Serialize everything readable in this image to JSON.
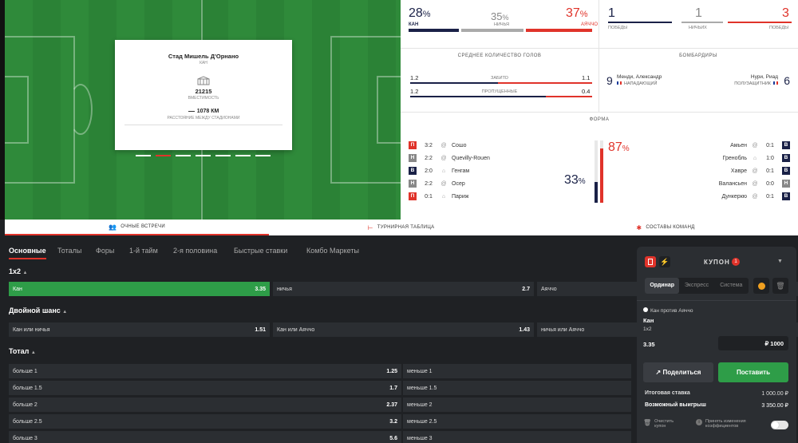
{
  "stadium": {
    "name": "Стад Мишель Д'Орнано",
    "city": "КАН",
    "capacity": "21215",
    "capacity_label": "ВМЕСТИМОСТЬ",
    "distance": "1078 КМ",
    "distance_label": "РАССТОЯНИЕ МЕЖДУ СТАДИОНАМИ",
    "active_slide": 2,
    "slides": 7
  },
  "probabilities": {
    "home_pct": "28",
    "home_name": "КАН",
    "draw_pct": "35",
    "draw_label": "НИЧЬЯ",
    "away_pct": "37",
    "away_name": "АЯЧЧО",
    "pct_sign": "%",
    "home_share": 0.28,
    "draw_share": 0.35,
    "away_share": 0.37
  },
  "h2h": {
    "wins": "1",
    "wins_label": "ПОБЕДЫ",
    "draws": "1",
    "draws_label": "НИЧЬИХ",
    "losses": "3",
    "losses_label": "ПОБЕДЫ"
  },
  "goals": {
    "title": "СРЕДНЕЕ КОЛИЧЕСТВО ГОЛОВ",
    "scored_label": "ЗАБИТО",
    "scored_home": "1.2",
    "scored_away": "1.1",
    "conceded_label": "ПРОПУЩЕННЫЕ",
    "conceded_home": "1.2",
    "conceded_away": "0.4"
  },
  "scorers": {
    "title": "БОМБАРДИРЫ",
    "home_goals": "9",
    "home_name": "Менди, Александр",
    "home_pos": "НАПАДАЮЩИЙ",
    "away_goals": "6",
    "away_name": "Нури, Риад",
    "away_pos": "ПОЛУЗАЩИТНИК"
  },
  "form": {
    "title": "ФОРМА",
    "home_pct": "33",
    "away_pct": "87",
    "pct_sign": "%",
    "home_level": 0.33,
    "away_level": 0.87,
    "home_matches": [
      {
        "res": "П",
        "score": "3:2",
        "venue": "@",
        "opp": "Сошо"
      },
      {
        "res": "Н",
        "score": "2:2",
        "venue": "@",
        "opp": "Quevilly-Rouen"
      },
      {
        "res": "В",
        "score": "2:0",
        "venue": "home",
        "opp": "Генгам"
      },
      {
        "res": "Н",
        "score": "2:2",
        "venue": "@",
        "opp": "Осер"
      },
      {
        "res": "П",
        "score": "0:1",
        "venue": "home",
        "opp": "Париж"
      }
    ],
    "away_matches": [
      {
        "res": "В",
        "score": "0:1",
        "venue": "@",
        "opp": "Амьен"
      },
      {
        "res": "В",
        "score": "1:0",
        "venue": "home",
        "opp": "Гренобль"
      },
      {
        "res": "В",
        "score": "0:1",
        "venue": "@",
        "opp": "Хавре"
      },
      {
        "res": "Н",
        "score": "0:0",
        "venue": "@",
        "opp": "Валансьен"
      },
      {
        "res": "В",
        "score": "0:1",
        "venue": "@",
        "opp": "Дункеркю"
      }
    ]
  },
  "tabs": {
    "h2h": "ОЧНЫЕ ВСТРЕЧИ",
    "table": "ТУРНИРНАЯ ТАБЛИЦА",
    "lineups": "СОСТАВЫ КОМАНД"
  },
  "market_tabs": [
    "Основные",
    "Тоталы",
    "Форы",
    "1-й тайм",
    "2-я половина",
    "Быстрые ставки",
    "Комбо Маркеты"
  ],
  "markets": {
    "m1x2": {
      "title": "1x2",
      "cells": [
        {
          "label": "Кан",
          "odd": "3.35"
        },
        {
          "label": "ничья",
          "odd": "2.7"
        },
        {
          "label": "Аяччо",
          "odd": ""
        }
      ]
    },
    "double": {
      "title": "Двойной шанс",
      "cells": [
        {
          "label": "Кан или ничья",
          "odd": "1.51"
        },
        {
          "label": "Кан или Аяччо",
          "odd": "1.43"
        },
        {
          "label": "ничья или Аяччо",
          "odd": ""
        }
      ]
    },
    "total": {
      "title": "Тотал",
      "rows": [
        {
          "over": "больше 1",
          "over_odd": "1.25",
          "under": "меньше 1"
        },
        {
          "over": "больше 1.5",
          "over_odd": "1.7",
          "under": "меньше 1.5"
        },
        {
          "over": "больше 2",
          "over_odd": "2.37",
          "under": "меньше 2"
        },
        {
          "over": "больше 2.5",
          "over_odd": "3.2",
          "under": "меньше 2.5"
        },
        {
          "over": "больше 3",
          "over_odd": "5.6",
          "under": "меньше 3"
        }
      ]
    }
  },
  "coupon": {
    "title": "КУПОН",
    "count": "1",
    "modes": [
      "Ординар",
      "Экспресс",
      "Система"
    ],
    "match": "Кан против Аяччо",
    "pick": "Кан",
    "market": "1x2",
    "odd": "3.35",
    "stake": "₽ 1000",
    "share": "Поделиться",
    "place": "Поставить",
    "total_label": "Итоговая ставка",
    "total_value": "1 000.00 ₽",
    "win_label": "Возможный выигрыш",
    "win_value": "3 350.00 ₽",
    "clear": "Очистить купон",
    "accept": "Принять изменения коэффициентов"
  },
  "colors": {
    "home": "#1a2147",
    "away": "#e0332a",
    "draw": "#aaaaaa",
    "win": "#1a2147",
    "loss": "#e0332a",
    "selected": "#2e9d48"
  }
}
